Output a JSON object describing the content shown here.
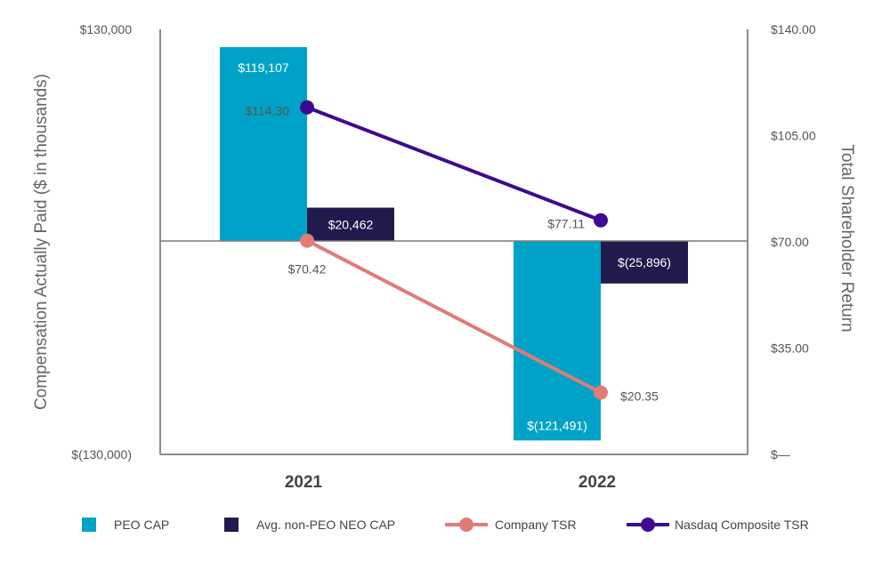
{
  "chart_data": {
    "type": "bar",
    "categories": [
      "2021",
      "2022"
    ],
    "y_left": {
      "label": "Compensation Actually Paid ($ in thousands)",
      "range": [
        -130000,
        130000
      ],
      "tick_labels": [
        "$130,000",
        "$(130,000)"
      ]
    },
    "y_right": {
      "label": "Total Shareholder Return",
      "range": [
        0,
        140
      ],
      "ticks": [
        140,
        105,
        70,
        35,
        0
      ],
      "tick_labels": [
        "$140.00",
        "$105.00",
        "$70.00",
        "$35.00",
        "$—"
      ]
    },
    "bar_series": [
      {
        "name": "PEO CAP",
        "color": "#00a3c7",
        "text_color": "#ffffff",
        "values": [
          119107,
          -121491
        ],
        "labels": [
          "$119,107",
          "$(121,491)"
        ]
      },
      {
        "name": "Avg. non-PEO NEO CAP",
        "color": "#211a4d",
        "text_color": "#ffffff",
        "values": [
          20462,
          -25896
        ],
        "labels": [
          "$20,462",
          "$(25,896)"
        ]
      }
    ],
    "line_series": [
      {
        "name": "Company TSR",
        "color": "#e07b78",
        "text_color": "#555555",
        "values": [
          70.42,
          20.35
        ],
        "labels": [
          "$70.42",
          "$20.35"
        ]
      },
      {
        "name": "Nasdaq Composite TSR",
        "color": "#3d0a91",
        "text_color": "#555555",
        "values": [
          114.3,
          77.11
        ],
        "labels": [
          "$114.30",
          "$77.11"
        ]
      }
    ],
    "grid": false,
    "legend_position": "bottom"
  }
}
